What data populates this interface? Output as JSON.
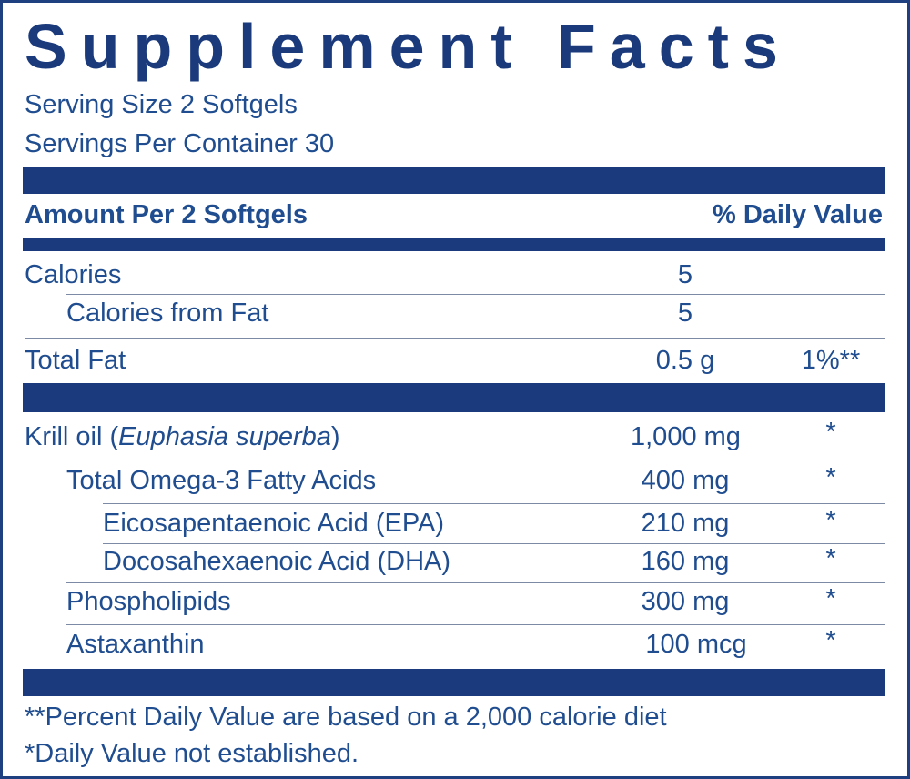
{
  "title": "Supplement Facts",
  "serving": [
    "Serving Size 2 Softgels",
    "Servings Per Container 30"
  ],
  "header": {
    "amount": "Amount Per 2 Softgels",
    "daily_value": "% Daily Value"
  },
  "rows": [
    {
      "name": "Calories",
      "amount": "5"
    },
    {
      "name": "Calories from Fat",
      "amount": "5"
    },
    {
      "name": "Total Fat",
      "amount": "0.5 g",
      "daily_value": "1%**"
    },
    {
      "name": "Krill oil (",
      "name_italic": "Euphasia superba",
      "name_end": ")",
      "amount": "1,000 mg",
      "daily_value": "*"
    },
    {
      "name": "Total Omega-3 Fatty Acids",
      "amount": "400 mg",
      "daily_value": "*"
    },
    {
      "name": "Eicosapentaenoic Acid (EPA)",
      "amount": "210 mg",
      "daily_value": "*"
    },
    {
      "name": "Docosahexaenoic Acid (DHA)",
      "amount": "160 mg",
      "daily_value": "*"
    },
    {
      "name": "Phospholipids",
      "amount": "300 mg",
      "daily_value": "*"
    },
    {
      "name": "Astaxanthin",
      "amount": "100 mcg",
      "daily_value": "*"
    }
  ],
  "footnotes": [
    "**Percent Daily Value are based on a 2,000 calorie diet",
    "*Daily Value not established."
  ]
}
